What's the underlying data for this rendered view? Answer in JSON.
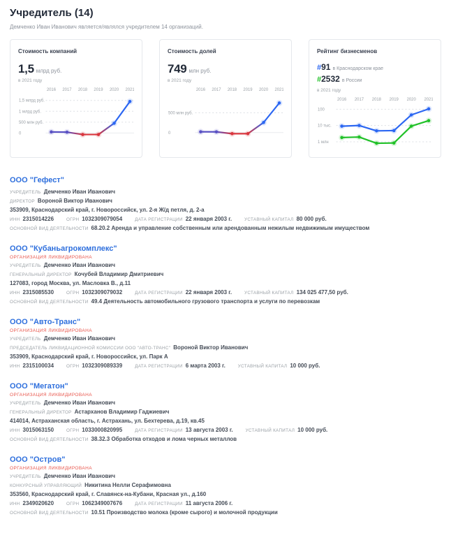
{
  "page": {
    "title": "Учредитель (14)",
    "subtitle": "Демченко Иван Иванович является/являлся учредителем 14 организаций."
  },
  "colors": {
    "accent_blue": "#2c67f2",
    "accent_green": "#21c128",
    "negative_red": "#d9363e",
    "purple_blend": "#5a52c4",
    "link_blue": "#2e6fdd",
    "status_red": "#e8564c"
  },
  "chart_data": [
    {
      "type": "line",
      "title": "Стоимость компаний",
      "headline_value": "1,5",
      "headline_unit": "млрд руб.",
      "caption": "в 2021 году",
      "categories": [
        "2016",
        "2017",
        "2018",
        "2019",
        "2020",
        "2021"
      ],
      "values": [
        0.05,
        0.04,
        -0.07,
        -0.07,
        0.45,
        1.45
      ],
      "unit": "млрд руб.",
      "ylim": [
        -0.18,
        1.62
      ],
      "grid": [
        {
          "label": "1,5 млрд руб.",
          "value": 1.5
        },
        {
          "label": "1 млрд руб.",
          "value": 1.0
        },
        {
          "label": "500 млн руб.",
          "value": 0.5
        },
        {
          "label": "0",
          "value": 0
        }
      ],
      "point_colors": [
        "#5a52c4",
        "#5a52c4",
        "#d9363e",
        "#d9363e",
        "#2c67f2",
        "#2c67f2"
      ],
      "legend": false,
      "x_labels_position": "top"
    },
    {
      "type": "line",
      "title": "Стоимость долей",
      "headline_value": "749",
      "headline_unit": "млн руб.",
      "caption": "в 2021 году",
      "categories": [
        "2016",
        "2017",
        "2018",
        "2019",
        "2020",
        "2021"
      ],
      "values": [
        20,
        18,
        -28,
        -28,
        255,
        749
      ],
      "unit": "млн руб.",
      "ylim": [
        -110,
        880
      ],
      "grid": [
        {
          "label": "500 млн руб.",
          "value": 500
        },
        {
          "label": "0",
          "value": 0
        }
      ],
      "point_colors": [
        "#5a52c4",
        "#5a52c4",
        "#d9363e",
        "#d9363e",
        "#2c67f2",
        "#2c67f2"
      ],
      "legend": false,
      "x_labels_position": "top"
    },
    {
      "type": "line",
      "title": "Рейтинг бизнесменов",
      "rank_region": {
        "hash": "#",
        "value": "91",
        "label": "в Краснодарском крае"
      },
      "rank_country": {
        "hash": "#",
        "value": "2532",
        "label": "в России"
      },
      "caption": "в 2021 году",
      "categories": [
        "2016",
        "2017",
        "2018",
        "2019",
        "2020",
        "2021"
      ],
      "scale": "log",
      "log_domain": [
        1.8,
        6.6
      ],
      "grid": [
        {
          "label": "100",
          "value": 100
        },
        {
          "label": "10 тыс.",
          "value": 10000
        },
        {
          "label": "1 млн",
          "value": 1000000
        }
      ],
      "series": [
        {
          "name": "Краснодарский край",
          "color": "#2c67f2",
          "values": [
            12000,
            10000,
            45000,
            42000,
            500,
            91
          ]
        },
        {
          "name": "Россия",
          "color": "#21c128",
          "values": [
            300000,
            260000,
            1500000,
            1400000,
            12000,
            2532
          ]
        }
      ],
      "legend": false,
      "x_labels_position": "top"
    }
  ],
  "companies": [
    {
      "name": "ООО \"Гефест\"",
      "status": "",
      "people": [
        {
          "label": "УЧРЕДИТЕЛЬ",
          "value": "Демченко Иван Иванович"
        },
        {
          "label": "ДИРЕКТОР",
          "value": "Вороной Виктор Иванович"
        }
      ],
      "address": "353909, Краснодарский край, г. Новороссийск, ул. 2-я Ж/д петля, д. 2-а",
      "stats": [
        {
          "label": "ИНН",
          "value": "2315014226"
        },
        {
          "label": "ОГРН",
          "value": "1032309079054"
        },
        {
          "label": "ДАТА РЕГИСТРАЦИИ",
          "value": "22 января 2003 г."
        },
        {
          "label": "УСТАВНЫЙ КАПИТАЛ",
          "value": "80 000 руб."
        }
      ],
      "activity": {
        "label": "ОСНОВНОЙ ВИД ДЕЯТЕЛЬНОСТИ",
        "value": "68.20.2 Аренда и управление собственным или арендованным нежилым недвижимым имуществом"
      }
    },
    {
      "name": "ООО \"Кубаньагрокомплекс\"",
      "status": "ОРГАНИЗАЦИЯ ЛИКВИДИРОВАНА",
      "people": [
        {
          "label": "УЧРЕДИТЕЛЬ",
          "value": "Демченко Иван Иванович"
        },
        {
          "label": "ГЕНЕРАЛЬНЫЙ ДИРЕКТОР",
          "value": "Кочубей Владимир Дмитриевич"
        }
      ],
      "address": "127083, город Москва, ул. Масловка В., д.11",
      "stats": [
        {
          "label": "ИНН",
          "value": "2315085530"
        },
        {
          "label": "ОГРН",
          "value": "1032309079032"
        },
        {
          "label": "ДАТА РЕГИСТРАЦИИ",
          "value": "22 января 2003 г."
        },
        {
          "label": "УСТАВНЫЙ КАПИТАЛ",
          "value": "134 025 477,50 руб."
        }
      ],
      "activity": {
        "label": "ОСНОВНОЙ ВИД ДЕЯТЕЛЬНОСТИ",
        "value": "49.4 Деятельность автомобильного грузового транспорта и услуги по перевозкам"
      }
    },
    {
      "name": "ООО \"Авто-Транс\"",
      "status": "ОРГАНИЗАЦИЯ ЛИКВИДИРОВАНА",
      "people": [
        {
          "label": "УЧРЕДИТЕЛЬ",
          "value": "Демченко Иван Иванович"
        },
        {
          "label": "ПРЕДСЕДАТЕЛЬ ЛИКВИДАЦИОННОЙ КОМИССИИ ООО \"АВТО-ТРАНС\"",
          "value": "Вороной Виктор Иванович"
        }
      ],
      "address": "353909, Краснодарский край, г. Новороссийск, ул. Парк А",
      "stats": [
        {
          "label": "ИНН",
          "value": "2315100034"
        },
        {
          "label": "ОГРН",
          "value": "1032309089339"
        },
        {
          "label": "ДАТА РЕГИСТРАЦИИ",
          "value": "6 марта 2003 г."
        },
        {
          "label": "УСТАВНЫЙ КАПИТАЛ",
          "value": "10 000 руб."
        }
      ],
      "activity": null
    },
    {
      "name": "ООО \"Мегатон\"",
      "status": "ОРГАНИЗАЦИЯ ЛИКВИДИРОВАНА",
      "people": [
        {
          "label": "УЧРЕДИТЕЛЬ",
          "value": "Демченко Иван Иванович"
        },
        {
          "label": "ГЕНЕРАЛЬНЫЙ ДИРЕКТОР",
          "value": "Астарханов Владимир Гаджиевич"
        }
      ],
      "address": "414014, Астраханская область, г. Астрахань, ул. Бехтерева, д.19, кв.45",
      "stats": [
        {
          "label": "ИНН",
          "value": "3015063150"
        },
        {
          "label": "ОГРН",
          "value": "1033000820995"
        },
        {
          "label": "ДАТА РЕГИСТРАЦИИ",
          "value": "13 августа 2003 г."
        },
        {
          "label": "УСТАВНЫЙ КАПИТАЛ",
          "value": "10 000 руб."
        }
      ],
      "activity": {
        "label": "ОСНОВНОЙ ВИД ДЕЯТЕЛЬНОСТИ",
        "value": "38.32.3 Обработка отходов и лома черных металлов"
      }
    },
    {
      "name": "ООО \"Остров\"",
      "status": "ОРГАНИЗАЦИЯ ЛИКВИДИРОВАНА",
      "people": [
        {
          "label": "УЧРЕДИТЕЛЬ",
          "value": "Демченко Иван Иванович"
        },
        {
          "label": "КОНКУРСНЫЙ УПРАВЛЯЮЩИЙ",
          "value": "Никитина Нелли Серафимовна"
        }
      ],
      "address": "353560, Краснодарский край, г. Славянск-на-Кубани, Красная ул., д.160",
      "stats": [
        {
          "label": "ИНН",
          "value": "2349020620"
        },
        {
          "label": "ОГРН",
          "value": "1062349007676"
        },
        {
          "label": "ДАТА РЕГИСТРАЦИИ",
          "value": "11 августа 2006 г."
        }
      ],
      "activity": {
        "label": "ОСНОВНОЙ ВИД ДЕЯТЕЛЬНОСТИ",
        "value": "10.51 Производство молока (кроме сырого) и молочной продукции"
      }
    }
  ]
}
